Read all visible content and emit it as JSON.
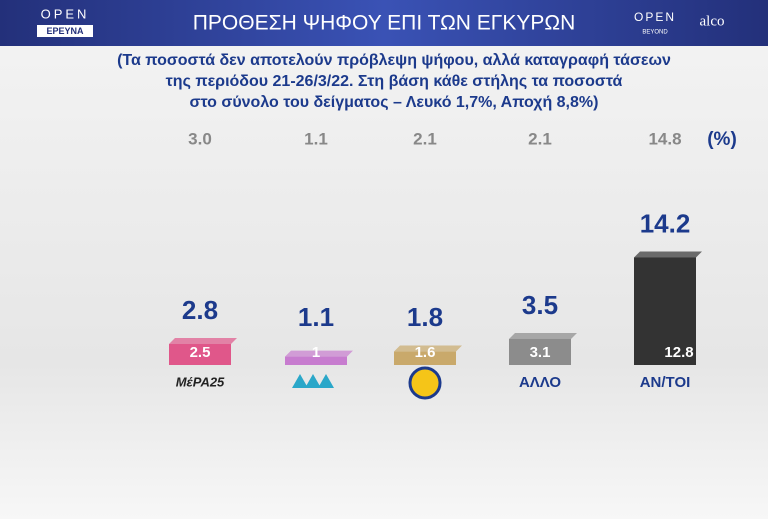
{
  "header": {
    "title": "ΠΡΟΘΕΣΗ ΨΗΦΟΥ ΕΠΙ ΤΩΝ ΕΓΚΥΡΩΝ",
    "logo_left_top": "OPEN",
    "logo_left_bottom": "ΕΡΕΥΝΑ",
    "logo_right_top": "OPEN",
    "logo_right_bottom": "BEYOND",
    "logo_alco": "alco"
  },
  "chart_data": {
    "type": "bar",
    "subtitle": [
      "(Τα ποσοστά δεν αποτελούν πρόβλεψη ψήφου, αλλά καταγραφή τάσεων",
      "της περιόδου 21-26/3/22. Στη βάση κάθε στήλης τα ποσοστά",
      "στο σύνολο του δείγματος – Λευκό 1,7%, Αποχή 8,8%)"
    ],
    "unit": "(%)",
    "categories": [
      "ΜέΡΑ25",
      null,
      null,
      "ΑΛΛΟ",
      "ΑΝ/ΤΟΙ"
    ],
    "values": [
      2.5,
      1,
      1.6,
      3.1,
      12.8
    ],
    "colors": [
      "#e0578a",
      "#c77ccf",
      "#c9a96b",
      "#8c8c8c",
      "#333333"
    ],
    "totals": [
      2.8,
      1.1,
      1.8,
      3.5,
      14.2
    ],
    "previous": [
      3.0,
      1.1,
      2.1,
      2.1,
      14.8
    ],
    "previous_labels": [
      "3.0",
      "1.1",
      "2.1",
      "2.1",
      "14.8"
    ]
  }
}
